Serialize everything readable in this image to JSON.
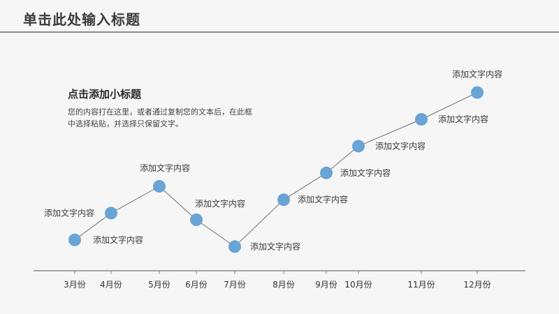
{
  "header": {
    "title": "单击此处输入标题"
  },
  "content": {
    "subtitle": "点击添加小标题",
    "body": "您的内容打在这里，或者通过复制您的文本后，在此框中选择粘贴，并选择只保留文字。"
  },
  "chart_data": {
    "type": "line",
    "title": "",
    "xlabel": "",
    "ylabel": "",
    "categories": [
      "3月份",
      "4月份",
      "5月份",
      "6月份",
      "7月份",
      "8月份",
      "9月份",
      "10月份",
      "11月份",
      "12月份"
    ],
    "series": [
      {
        "values": [
          1,
          3,
          5,
          2.5,
          0.5,
          4,
          6,
          8,
          10,
          12
        ],
        "point_labels": [
          "添加文字内容",
          "添加文字内容",
          "添加文字内容",
          "添加文字内容",
          "添加文字内容",
          "添加文字内容",
          "添加文字内容",
          "添加文字内容",
          "添加文字内容",
          "添加文字内容"
        ]
      }
    ],
    "ylim": [
      0,
      12.5
    ],
    "grid": false,
    "legend": "none",
    "colors": {
      "marker": "#6aa3d5",
      "line": "#6e6e6e",
      "axis": "#8a8a8a"
    }
  }
}
